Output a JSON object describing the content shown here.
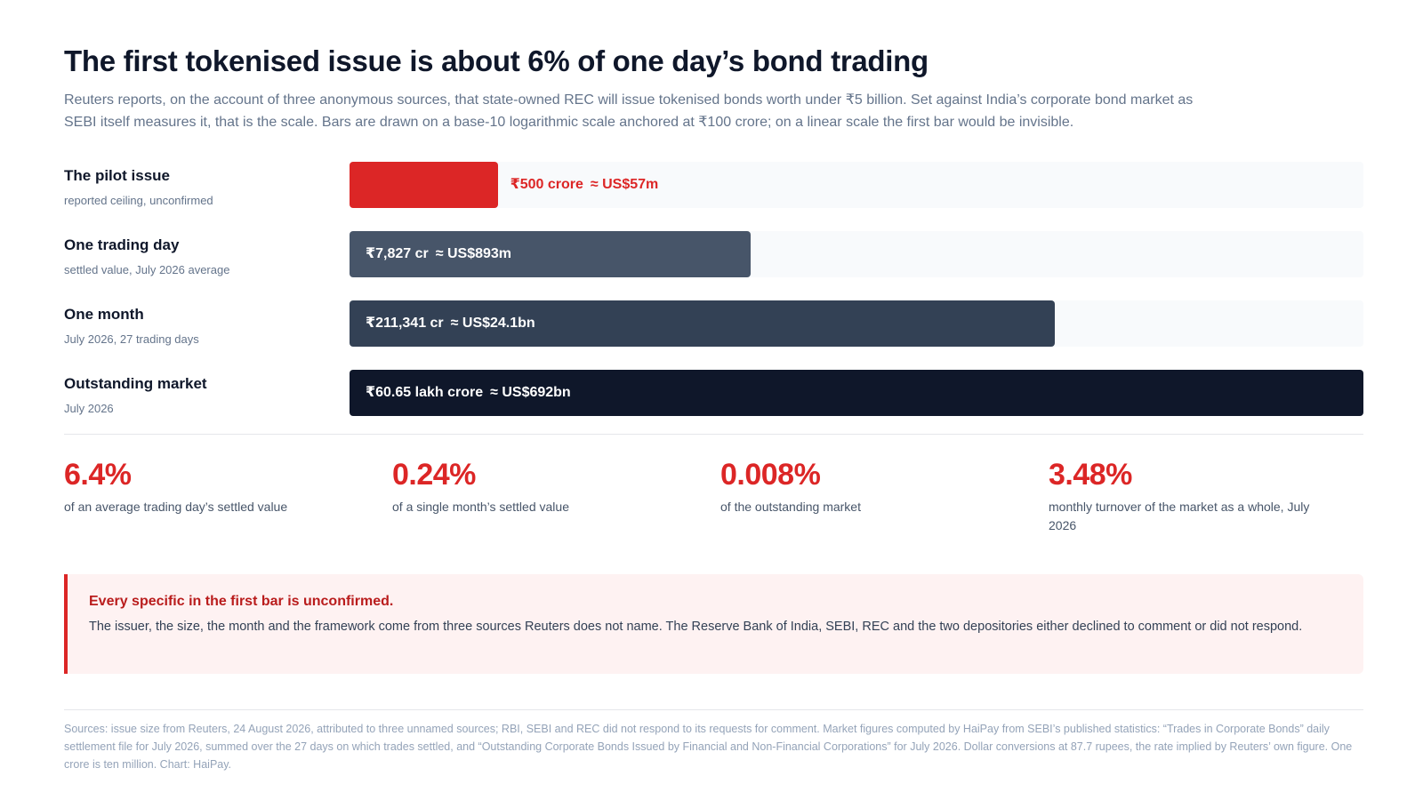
{
  "header": {
    "title": "The first tokenised issue is about 6% of one day’s bond trading",
    "subtitle": "Reuters reports, on the account of three anonymous sources, that state-owned REC will issue tokenised bonds worth under ₹5 billion. Set against India’s corporate bond market as SEBI itself measures it, that is the scale. Bars are drawn on a base-10 logarithmic scale anchored at ₹100 crore; on a linear scale the first bar would be invisible."
  },
  "chart_data": {
    "type": "bar",
    "orientation": "horizontal",
    "scale": "log10",
    "unit": "₹ crore",
    "baseline": 100,
    "categories": [
      "The pilot issue",
      "One trading day",
      "One month",
      "Outstanding market"
    ],
    "values": [
      500,
      7827,
      211341,
      6065000
    ],
    "notes": [
      "reported ceiling, unconfirmed",
      "settled value, July 2026 average",
      "July 2026, 27 trading days",
      "July 2026"
    ],
    "value_labels": [
      "₹500 crore",
      "₹7,827 cr",
      "₹211,341 cr",
      "₹60.65 lakh crore"
    ],
    "usd_labels": [
      "≈ US$57m",
      "≈ US$893m",
      "≈ US$24.1bn",
      "≈ US$692bn"
    ],
    "colors": [
      "#dc2626",
      "#475569",
      "#334155",
      "#0f172a"
    ],
    "label_colors": [
      "#dc2626",
      "#ffffff",
      "#ffffff",
      "#ffffff"
    ],
    "label_inside": [
      false,
      true,
      true,
      true
    ]
  },
  "stats": [
    {
      "value": "6.4%",
      "label": "of an average trading day’s settled value"
    },
    {
      "value": "0.24%",
      "label": "of a single month’s settled value"
    },
    {
      "value": "0.008%",
      "label": "of the outstanding market"
    },
    {
      "value": "3.48%",
      "label": "monthly turnover of the market as a whole, July 2026"
    }
  ],
  "callout": {
    "title": "Every specific in the first bar is unconfirmed.",
    "body": "The issuer, the size, the month and the framework come from three sources Reuters does not name. The Reserve Bank of India, SEBI, REC and the two depositories either declined to comment or did not respond."
  },
  "sources": "Sources: issue size from Reuters, 24 August 2026, attributed to three unnamed sources; RBI, SEBI and REC did not respond to its requests for comment. Market figures computed by HaiPay from SEBI’s published statistics: “Trades in Corporate Bonds” daily settlement file for July 2026, summed over the 27 days on which trades settled, and “Outstanding Corporate Bonds Issued by Financial and Non-Financial Corporations” for July 2026. Dollar conversions at 87.7 rupees, the rate implied by Reuters’ own figure. One crore is ten million. Chart: HaiPay.",
  "colors": {
    "accent": "#dc2626",
    "callout_bg": "#fef2f2"
  }
}
